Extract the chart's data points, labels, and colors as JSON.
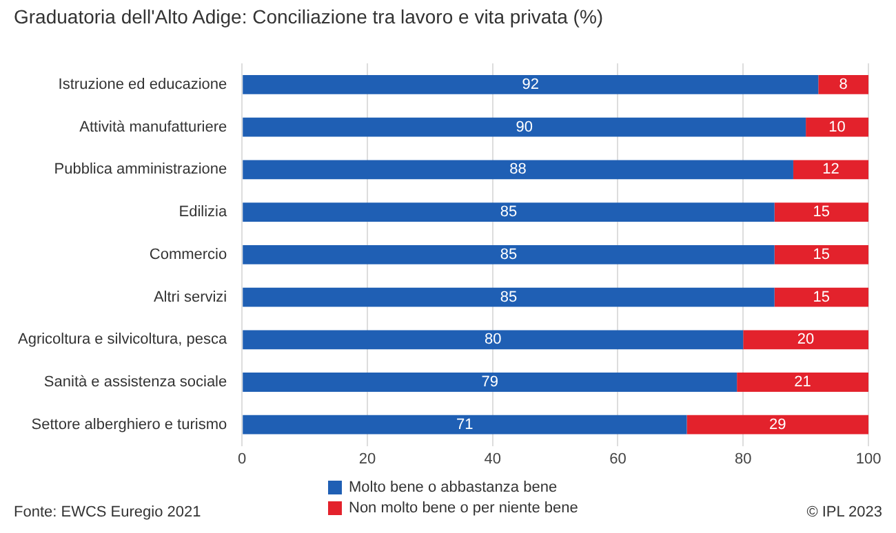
{
  "chart_data": {
    "type": "bar",
    "orientation": "horizontal",
    "stacked": true,
    "title": "Graduatoria dell'Alto Adige: Conciliazione tra lavoro e vita privata (%)",
    "categories": [
      "Istruzione ed educazione",
      "Attività manufatturiere",
      "Pubblica amministrazione",
      "Edilizia",
      "Commercio",
      "Altri servizi",
      "Agricoltura e silvicoltura, pesca",
      "Sanità e assistenza sociale",
      "Settore alberghiero e turismo"
    ],
    "series": [
      {
        "name": "Molto bene o abbastanza bene",
        "color": "#1f5fb4",
        "values": [
          92,
          90,
          88,
          85,
          85,
          85,
          80,
          79,
          71
        ]
      },
      {
        "name": "Non molto bene o per niente bene",
        "color": "#e3222c",
        "values": [
          8,
          10,
          12,
          15,
          15,
          15,
          20,
          21,
          29
        ]
      }
    ],
    "xlim": [
      0,
      100
    ],
    "xticks": [
      0,
      20,
      40,
      60,
      80,
      100
    ],
    "grid": "x",
    "legend": "bottom",
    "data_labels": true,
    "annotations": [
      "Fonte: EWCS Euregio 2021",
      "© IPL 2023"
    ]
  }
}
